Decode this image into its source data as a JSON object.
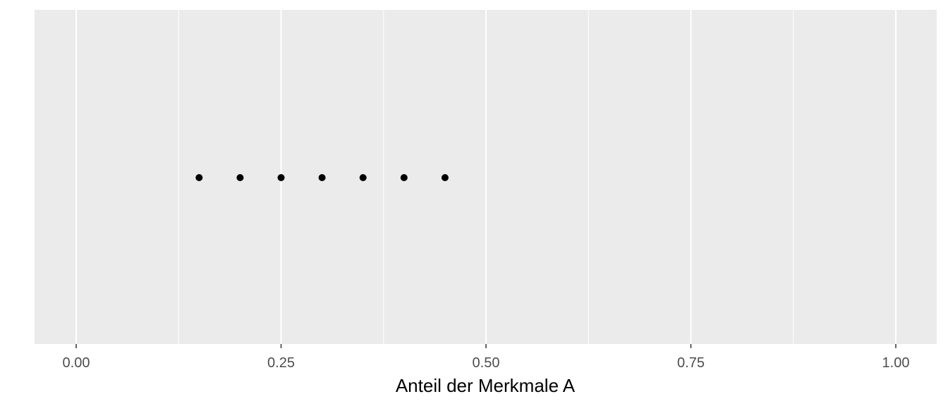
{
  "chart_data": {
    "type": "scatter",
    "title": "",
    "xlabel": "Anteil der Merkmale A",
    "ylabel": "",
    "xlim": [
      -0.05,
      1.05
    ],
    "grid": true,
    "legend": "none",
    "x_ticks": [
      0.0,
      0.25,
      0.5,
      0.75,
      1.0
    ],
    "x_tick_labels": [
      "0.00",
      "0.25",
      "0.50",
      "0.75",
      "1.00"
    ],
    "x_minor_ticks": [
      0.125,
      0.375,
      0.625,
      0.875
    ],
    "x": [
      0.15,
      0.2,
      0.25,
      0.3,
      0.35,
      0.4,
      0.45
    ],
    "y": [
      0,
      0,
      0,
      0,
      0,
      0,
      0
    ],
    "colors": {
      "panel_background": "#EBEBEB",
      "grid_major": "#FFFFFF",
      "grid_minor": "#FFFFFF",
      "point": "#000000",
      "tick_label": "#4D4D4D",
      "axis_title": "#000000"
    }
  }
}
